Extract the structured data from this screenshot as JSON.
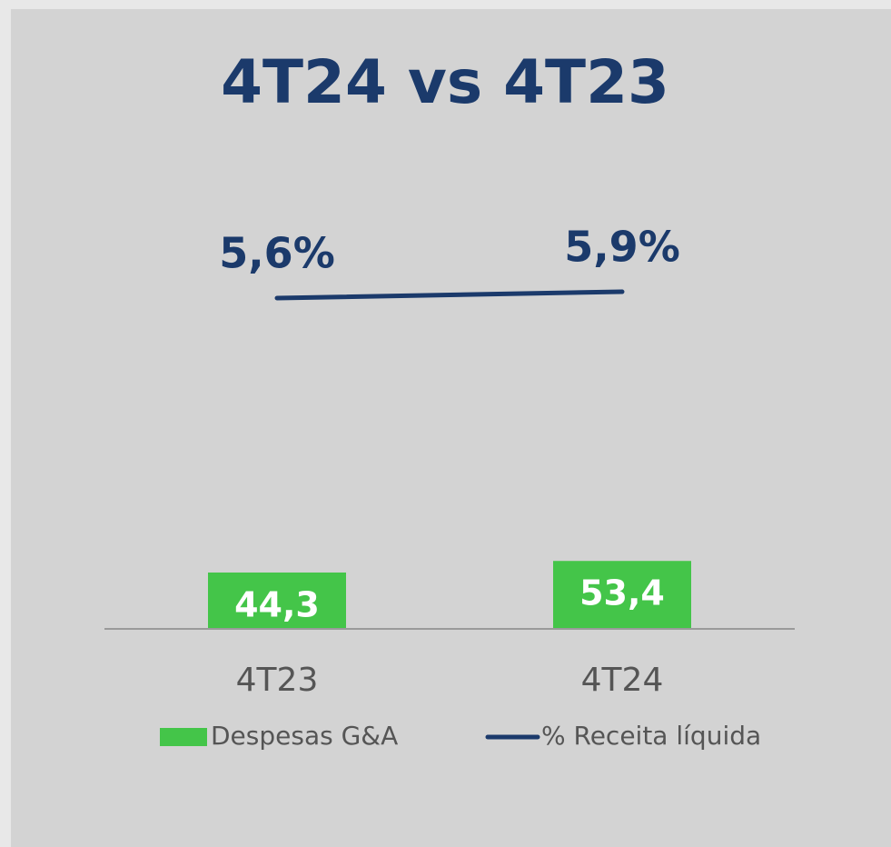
{
  "chart_data": {
    "type": "bar",
    "title": "4T24 vs 4T23",
    "categories": [
      "4T23",
      "4T24"
    ],
    "series": [
      {
        "name": "Despesas G&A",
        "type": "bar",
        "color": "#44c549",
        "values": [
          44.3,
          53.4
        ],
        "value_labels": [
          "44,3",
          "53,4"
        ]
      },
      {
        "name": "% Receita líquida",
        "type": "line",
        "axis": "y2",
        "color": "#1b3a6b",
        "values": [
          5.6,
          5.9
        ],
        "value_labels": [
          "5,6%",
          "5,9%"
        ]
      }
    ],
    "ylim": [
      0,
      400
    ],
    "y2lim": [
      -10,
      14
    ],
    "legend": "bottom"
  }
}
